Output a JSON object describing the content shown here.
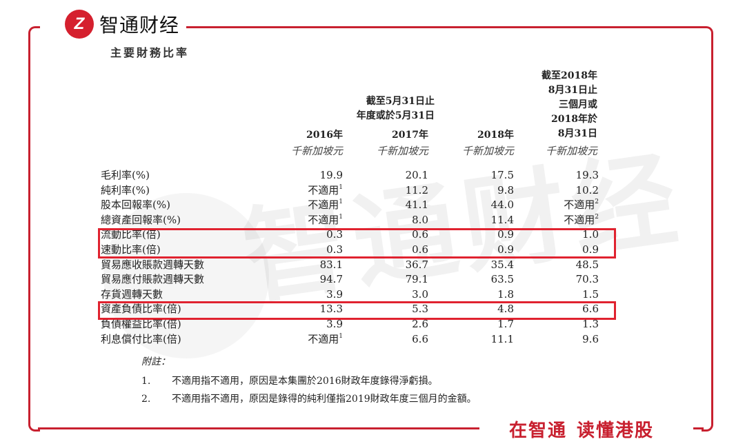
{
  "brand": {
    "logo_mark": "Z",
    "name": "智通财经",
    "slogan_1": "在智通",
    "slogan_2": "读懂港股",
    "accent": "#c8202f"
  },
  "title": "主要財務比率",
  "header": {
    "group_label": [
      "截至5月31日止",
      "年度或於5月31日"
    ],
    "last_label": [
      "截至2018年",
      "8月31日止",
      "三個月或",
      "2018年於",
      "8月31日"
    ],
    "years": [
      "2016年",
      "2017年",
      "2018年"
    ],
    "units": [
      "千新加坡元",
      "千新加坡元",
      "千新加坡元",
      "千新加坡元"
    ]
  },
  "rows": [
    {
      "label": "毛利率(%)",
      "values": [
        "19.9",
        "20.1",
        "17.5",
        "19.3"
      ],
      "notes": [
        "",
        "",
        "",
        ""
      ]
    },
    {
      "label": "純利率(%)",
      "values": [
        "不適用",
        "11.2",
        "9.8",
        "10.2"
      ],
      "notes": [
        "1",
        "",
        "",
        ""
      ]
    },
    {
      "label": "股本回報率(%)",
      "values": [
        "不適用",
        "41.1",
        "44.0",
        "不適用"
      ],
      "notes": [
        "1",
        "",
        "",
        "2"
      ]
    },
    {
      "label": "總資產回報率(%)",
      "values": [
        "不適用",
        "8.0",
        "11.4",
        "不適用"
      ],
      "notes": [
        "1",
        "",
        "",
        "2"
      ]
    },
    {
      "label": "流動比率(倍)",
      "values": [
        "0.3",
        "0.6",
        "0.9",
        "1.0"
      ],
      "notes": [
        "",
        "",
        "",
        ""
      ]
    },
    {
      "label": "速動比率(倍)",
      "values": [
        "0.3",
        "0.6",
        "0.9",
        "0.9"
      ],
      "notes": [
        "",
        "",
        "",
        ""
      ]
    },
    {
      "label": "貿易應收賬款週轉天數",
      "values": [
        "83.1",
        "36.7",
        "35.4",
        "48.5"
      ],
      "notes": [
        "",
        "",
        "",
        ""
      ]
    },
    {
      "label": "貿易應付賬款週轉天數",
      "values": [
        "94.7",
        "79.1",
        "63.5",
        "70.3"
      ],
      "notes": [
        "",
        "",
        "",
        ""
      ]
    },
    {
      "label": "存貨週轉天數",
      "values": [
        "3.9",
        "3.0",
        "1.8",
        "1.5"
      ],
      "notes": [
        "",
        "",
        "",
        ""
      ]
    },
    {
      "label": "資產負債比率(倍)",
      "values": [
        "13.3",
        "5.3",
        "4.8",
        "6.6"
      ],
      "notes": [
        "",
        "",
        "",
        ""
      ]
    },
    {
      "label": "負債權益比率(倍)",
      "values": [
        "3.9",
        "2.6",
        "1.7",
        "1.3"
      ],
      "notes": [
        "",
        "",
        "",
        ""
      ]
    },
    {
      "label": "利息償付比率(倍)",
      "values": [
        "不適用",
        "6.6",
        "11.1",
        "9.6"
      ],
      "notes": [
        "1",
        "",
        "",
        ""
      ]
    }
  ],
  "notes": {
    "heading": "附註：",
    "items": [
      {
        "num": "1.",
        "text": "不適用指不適用，原因是本集團於2016財政年度錄得淨虧損。"
      },
      {
        "num": "2.",
        "text": "不適用指不適用，原因是錄得的純利僅指2019財政年度三個月的金額。"
      }
    ]
  },
  "highlight_color": "#e0222f"
}
